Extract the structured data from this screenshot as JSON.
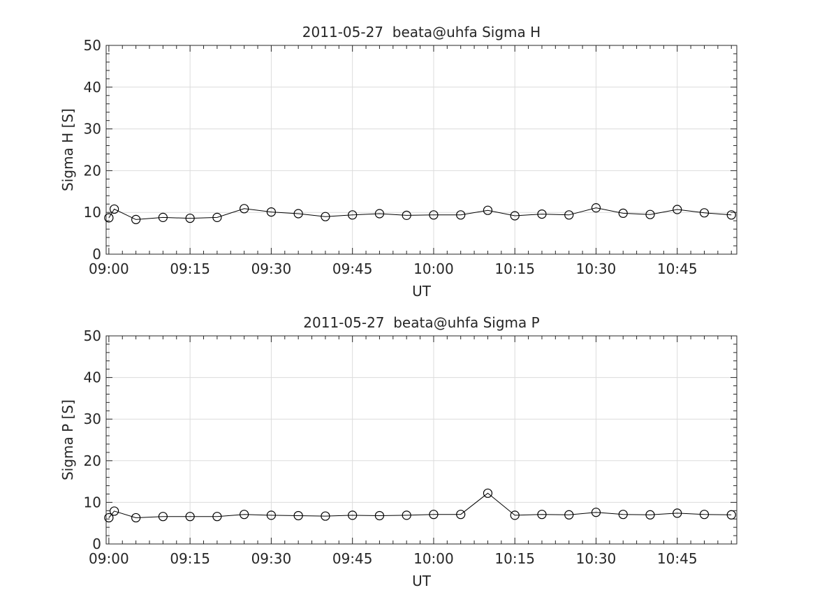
{
  "chart_data": [
    {
      "type": "line",
      "title": "2011-05-27  beata@uhfa Sigma H",
      "xlabel": "UT",
      "ylabel": "Sigma H [S]",
      "x_tick_labels": [
        "09:00",
        "09:15",
        "09:30",
        "09:45",
        "10:00",
        "10:15",
        "10:30",
        "10:45"
      ],
      "y_tick_labels": [
        "0",
        "10",
        "20",
        "30",
        "40",
        "50"
      ],
      "xlim": [
        "08:59:30",
        "10:56:00"
      ],
      "ylim": [
        0,
        50
      ],
      "grid": true,
      "series": [
        {
          "x": [
            "09:00",
            "09:01",
            "09:05",
            "09:10",
            "09:15",
            "09:20",
            "09:25",
            "09:30",
            "09:35",
            "09:40",
            "09:45",
            "09:50",
            "09:55",
            "10:00",
            "10:05",
            "10:10",
            "10:15",
            "10:20",
            "10:25",
            "10:30",
            "10:35",
            "10:40",
            "10:45",
            "10:50",
            "10:55"
          ],
          "values": [
            8.7,
            10.8,
            8.3,
            8.8,
            8.6,
            8.8,
            10.9,
            10.1,
            9.7,
            9.0,
            9.4,
            9.7,
            9.3,
            9.4,
            9.4,
            10.5,
            9.2,
            9.6,
            9.4,
            11.1,
            9.8,
            9.5,
            10.7,
            9.9,
            9.4
          ]
        }
      ]
    },
    {
      "type": "line",
      "title": "2011-05-27  beata@uhfa Sigma P",
      "xlabel": "UT",
      "ylabel": "Sigma P [S]",
      "x_tick_labels": [
        "09:00",
        "09:15",
        "09:30",
        "09:45",
        "10:00",
        "10:15",
        "10:30",
        "10:45"
      ],
      "y_tick_labels": [
        "0",
        "10",
        "20",
        "30",
        "40",
        "50"
      ],
      "xlim": [
        "08:59:30",
        "10:56:00"
      ],
      "ylim": [
        0,
        50
      ],
      "grid": true,
      "series": [
        {
          "x": [
            "09:00",
            "09:01",
            "09:05",
            "09:10",
            "09:15",
            "09:20",
            "09:25",
            "09:30",
            "09:35",
            "09:40",
            "09:45",
            "09:50",
            "09:55",
            "10:00",
            "10:05",
            "10:10",
            "10:15",
            "10:20",
            "10:25",
            "10:30",
            "10:35",
            "10:40",
            "10:45",
            "10:50",
            "10:55"
          ],
          "values": [
            6.3,
            7.9,
            6.3,
            6.6,
            6.6,
            6.6,
            7.1,
            6.9,
            6.8,
            6.7,
            6.9,
            6.8,
            6.9,
            7.1,
            7.1,
            12.2,
            6.9,
            7.1,
            7.0,
            7.6,
            7.1,
            7.0,
            7.4,
            7.1,
            7.0
          ]
        }
      ]
    }
  ]
}
